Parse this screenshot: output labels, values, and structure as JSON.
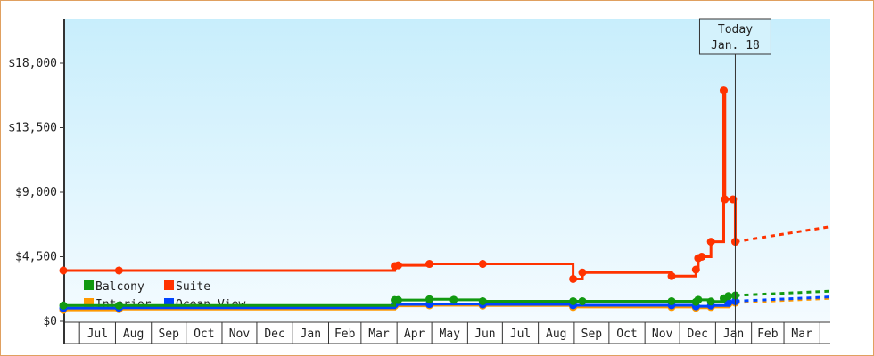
{
  "chart_data": {
    "type": "line",
    "title": "",
    "xlabel": "",
    "ylabel": "",
    "x_range": [
      "2012-06-17",
      "2014-04-10"
    ],
    "ylim": [
      0,
      21000
    ],
    "y_ticks": [
      0,
      4500,
      9000,
      13500,
      18000
    ],
    "y_tick_labels": [
      "$0",
      "$4,500",
      "$9,000",
      "$13,500",
      "$18,000"
    ],
    "month_labels": [
      {
        "label": "Jul",
        "start": "2012-07-01"
      },
      {
        "label": "Aug",
        "start": "2012-08-01"
      },
      {
        "label": "Sep",
        "start": "2012-09-01"
      },
      {
        "label": "Oct",
        "start": "2012-10-01"
      },
      {
        "label": "Nov",
        "start": "2012-11-01"
      },
      {
        "label": "Dec",
        "start": "2012-12-01"
      },
      {
        "label": "Jan",
        "start": "2013-01-01"
      },
      {
        "label": "Feb",
        "start": "2013-02-01"
      },
      {
        "label": "Mar",
        "start": "2013-03-01"
      },
      {
        "label": "Apr",
        "start": "2013-04-01"
      },
      {
        "label": "May",
        "start": "2013-05-01"
      },
      {
        "label": "Jun",
        "start": "2013-06-01"
      },
      {
        "label": "Jul",
        "start": "2013-07-01"
      },
      {
        "label": "Aug",
        "start": "2013-08-01"
      },
      {
        "label": "Sep",
        "start": "2013-09-01"
      },
      {
        "label": "Oct",
        "start": "2013-10-01"
      },
      {
        "label": "Nov",
        "start": "2013-11-01"
      },
      {
        "label": "Dec",
        "start": "2013-12-01"
      },
      {
        "label": "Jan",
        "start": "2014-01-01"
      },
      {
        "label": "Feb",
        "start": "2014-02-01"
      },
      {
        "label": "Mar",
        "start": "2014-03-01"
      }
    ],
    "x_end": "2014-04-01",
    "today": {
      "date": "2014-01-18",
      "line1": "Today",
      "line2": "Jan. 18"
    },
    "legend_placement": "bottom-left",
    "grid": false,
    "series": [
      {
        "name": "Balcony",
        "color": "#119911",
        "points": [
          [
            "2012-06-17",
            1100
          ],
          [
            "2012-08-04",
            1100
          ],
          [
            "2013-03-30",
            1480
          ],
          [
            "2013-04-02",
            1480
          ],
          [
            "2013-04-29",
            1540
          ],
          [
            "2013-05-20",
            1500
          ],
          [
            "2013-06-14",
            1400
          ],
          [
            "2013-08-31",
            1400
          ],
          [
            "2013-09-08",
            1400
          ],
          [
            "2013-11-24",
            1400
          ],
          [
            "2013-12-15",
            1350
          ],
          [
            "2013-12-17",
            1500
          ],
          [
            "2013-12-28",
            1380
          ],
          [
            "2014-01-08",
            1600
          ],
          [
            "2014-01-12",
            1750
          ],
          [
            "2014-01-18",
            1800
          ]
        ],
        "forecast": [
          [
            "2014-01-18",
            1800
          ],
          [
            "2014-04-10",
            2100
          ]
        ]
      },
      {
        "name": "Suite",
        "color": "#ff3300",
        "points": [
          [
            "2012-06-17",
            3540
          ],
          [
            "2012-08-04",
            3540
          ],
          [
            "2013-03-30",
            3850
          ],
          [
            "2013-04-02",
            3900
          ],
          [
            "2013-04-29",
            4000
          ],
          [
            "2013-06-14",
            4000
          ],
          [
            "2013-08-31",
            2950
          ],
          [
            "2013-09-08",
            3400
          ],
          [
            "2013-11-24",
            3150
          ],
          [
            "2013-12-15",
            3600
          ],
          [
            "2013-12-17",
            4400
          ],
          [
            "2013-12-20",
            4500
          ],
          [
            "2013-12-28",
            5550
          ],
          [
            "2014-01-08",
            16100
          ],
          [
            "2014-01-09",
            8500
          ],
          [
            "2014-01-16",
            8500
          ],
          [
            "2014-01-18",
            5550
          ]
        ],
        "forecast": [
          [
            "2014-01-18",
            5550
          ],
          [
            "2014-04-10",
            6600
          ]
        ]
      },
      {
        "name": "Interior",
        "color": "#ff9900",
        "points": [
          [
            "2012-06-17",
            800
          ],
          [
            "2012-08-04",
            850
          ],
          [
            "2013-03-30",
            1080
          ],
          [
            "2013-04-29",
            1120
          ],
          [
            "2013-06-14",
            1100
          ],
          [
            "2013-08-31",
            1000
          ],
          [
            "2013-11-24",
            1000
          ],
          [
            "2013-12-15",
            950
          ],
          [
            "2013-12-28",
            1000
          ],
          [
            "2014-01-12",
            1200
          ],
          [
            "2014-01-18",
            1300
          ]
        ],
        "forecast": [
          [
            "2014-01-18",
            1300
          ],
          [
            "2014-04-10",
            1600
          ]
        ]
      },
      {
        "name": "Ocean View",
        "color": "#0044ff",
        "points": [
          [
            "2012-06-17",
            920
          ],
          [
            "2012-08-04",
            950
          ],
          [
            "2013-03-30",
            1180
          ],
          [
            "2013-04-29",
            1200
          ],
          [
            "2013-06-14",
            1180
          ],
          [
            "2013-08-31",
            1120
          ],
          [
            "2013-11-24",
            1120
          ],
          [
            "2013-12-15",
            1050
          ],
          [
            "2013-12-28",
            1100
          ],
          [
            "2014-01-12",
            1300
          ],
          [
            "2014-01-18",
            1400
          ]
        ],
        "forecast": [
          [
            "2014-01-18",
            1400
          ],
          [
            "2014-04-10",
            1700
          ]
        ]
      }
    ]
  }
}
